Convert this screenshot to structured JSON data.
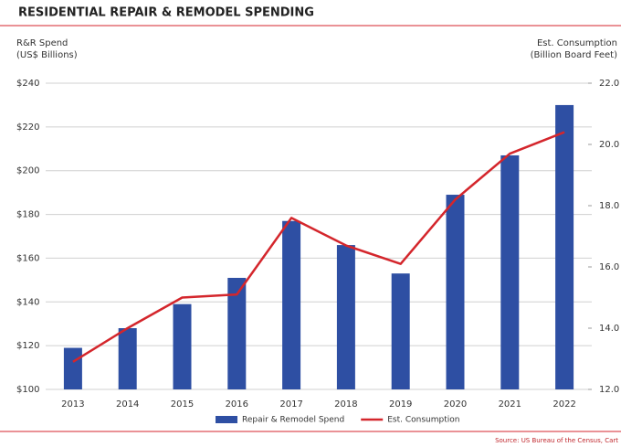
{
  "chart_data": {
    "type": "bar",
    "title": "RESIDENTIAL REPAIR & REMODEL SPENDING",
    "y_label": [
      "R&R Spend",
      "(US$ Billions)"
    ],
    "y2_label": [
      "Est. Consumption",
      "(Billion Board Feet)"
    ],
    "source": "Source: US Bureau of the Census, Cart",
    "categories": [
      "2013",
      "2014",
      "2015",
      "2016",
      "2017",
      "2018",
      "2019",
      "2020",
      "2021",
      "2022"
    ],
    "series": [
      {
        "name": "Repair & Remodel Spend",
        "type": "bar",
        "color": "#2e4fa3",
        "values": [
          119,
          128,
          139,
          151,
          177,
          166,
          153,
          189,
          207,
          230
        ]
      },
      {
        "name": "Est. Consumption",
        "type": "line",
        "axis": "y2",
        "color": "#d4262c",
        "values": [
          12.9,
          14.0,
          15.0,
          15.1,
          17.6,
          16.7,
          16.1,
          18.2,
          19.7,
          20.4
        ]
      }
    ],
    "ylim": [
      100,
      240
    ],
    "yticks": [
      {
        "value": 100,
        "label": "$100"
      },
      {
        "value": 120,
        "label": "$120"
      },
      {
        "value": 140,
        "label": "$140"
      },
      {
        "value": 160,
        "label": "$160"
      },
      {
        "value": 180,
        "label": "$180"
      },
      {
        "value": 200,
        "label": "$200"
      },
      {
        "value": 220,
        "label": "$220"
      },
      {
        "value": 240,
        "label": "$240"
      }
    ],
    "y2lim": [
      12,
      22
    ],
    "y2ticks": [
      {
        "value": 12,
        "label": "12.0"
      },
      {
        "value": 14,
        "label": "14.0"
      },
      {
        "value": 16,
        "label": "16.0"
      },
      {
        "value": 18,
        "label": "18.0"
      },
      {
        "value": 20,
        "label": "20.0"
      },
      {
        "value": 22,
        "label": "22.0"
      }
    ],
    "grid": true,
    "legend": "bottom"
  }
}
